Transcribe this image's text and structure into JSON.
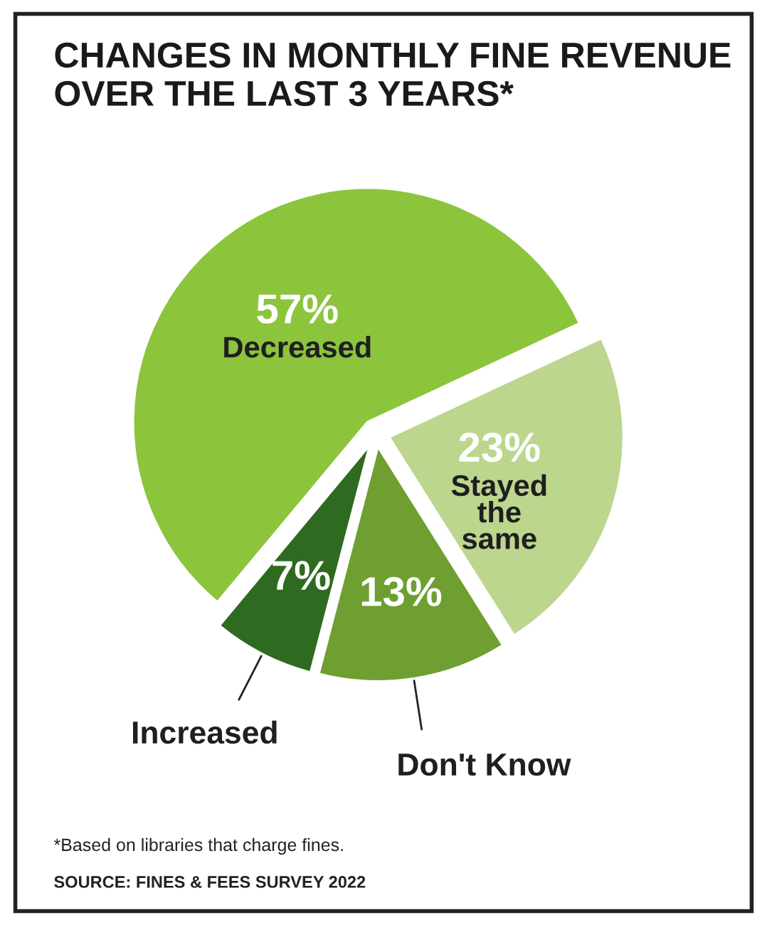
{
  "chart_data": {
    "type": "pie",
    "title": "CHANGES IN MONTHLY FINE REVENUE OVER THE LAST 3 YEARS*",
    "categories": [
      "Decreased",
      "Stayed the same",
      "Don't Know",
      "Increased"
    ],
    "values": [
      57,
      23,
      13,
      7
    ],
    "colors": [
      "#8cc43c",
      "#bcd68e",
      "#6e9f30",
      "#2e6a1f"
    ],
    "value_labels": [
      "57%",
      "23%",
      "13%",
      "7%"
    ],
    "annotations": [
      "*Based on libraries that charge fines.",
      "SOURCE: FINES & FEES SURVEY 2022"
    ]
  }
}
